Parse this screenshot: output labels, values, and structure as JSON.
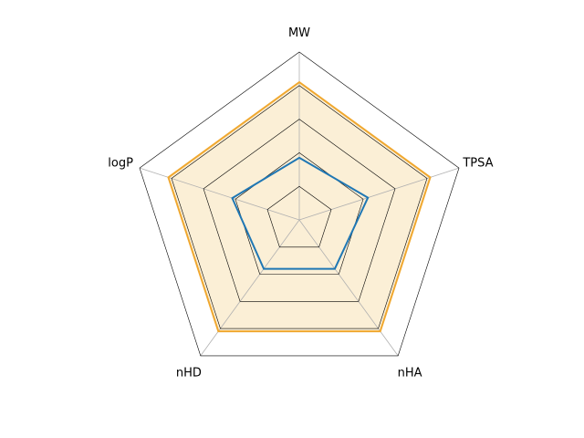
{
  "chart_data": {
    "type": "radar",
    "axes": [
      "MW",
      "TPSA",
      "nHA",
      "nHD",
      "logP"
    ],
    "rmax": 1.0,
    "grid_levels": [
      0.2,
      0.4,
      0.6,
      0.8
    ],
    "series": [
      {
        "values": [
          0.82,
          0.82,
          0.82,
          0.82,
          0.82
        ],
        "stroke": "#f0a830",
        "fill": "#fbefd6",
        "fill_opacity": 1.0
      },
      {
        "values": [
          0.37,
          0.43,
          0.36,
          0.36,
          0.42
        ],
        "stroke": "#1f77b4",
        "fill": "none",
        "fill_opacity": 0
      }
    ],
    "grid_color": "#000000",
    "spoke_color": "#b0b0b0"
  }
}
